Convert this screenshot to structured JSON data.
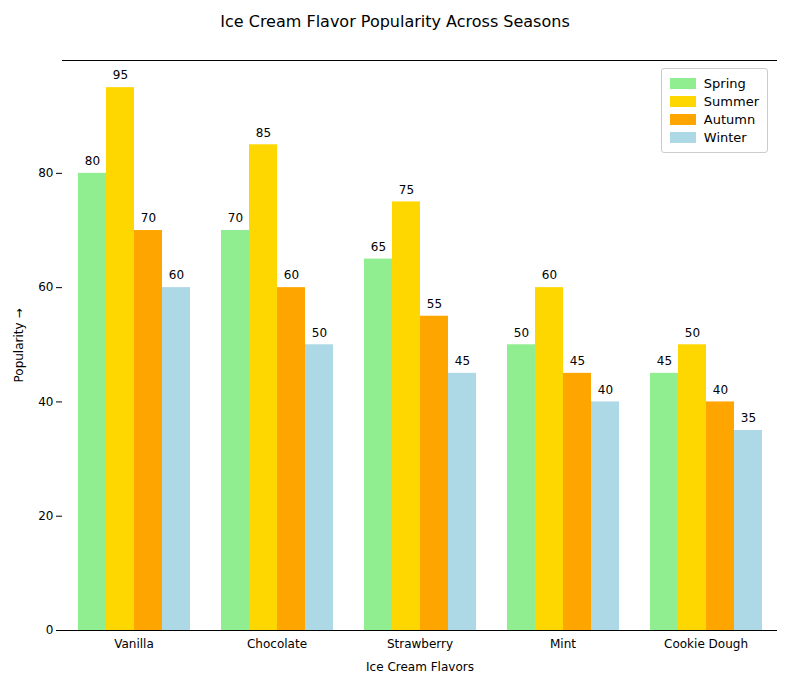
{
  "chart_data": {
    "type": "bar",
    "title": "Ice Cream Flavor Popularity Across Seasons",
    "x_label": "Ice Cream Flavors",
    "y_label": "Popularity",
    "categories": [
      "Vanilla",
      "Chocolate",
      "Strawberry",
      "Mint",
      "Cookie Dough"
    ],
    "series": [
      {
        "name": "Spring",
        "color": "#90ee90",
        "values": [
          80,
          70,
          65,
          50,
          45
        ]
      },
      {
        "name": "Summer",
        "color": "#ffd700",
        "values": [
          95,
          85,
          75,
          60,
          50
        ]
      },
      {
        "name": "Autumn",
        "color": "#ffa500",
        "values": [
          70,
          60,
          55,
          45,
          40
        ]
      },
      {
        "name": "Winter",
        "color": "#add8e6",
        "values": [
          60,
          50,
          45,
          40,
          35
        ]
      }
    ],
    "ylim": [
      0,
      99.75
    ],
    "yticks": [
      0,
      20,
      40,
      60,
      80
    ],
    "grid": false,
    "legend": "upper right",
    "data_labels": true
  }
}
